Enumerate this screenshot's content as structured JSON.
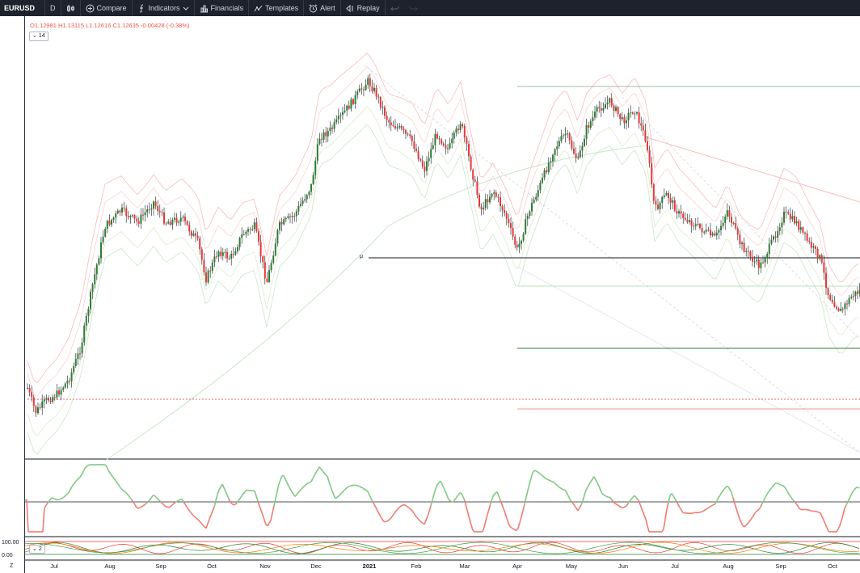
{
  "toolbar": {
    "symbol": "EURUSD",
    "interval": "D",
    "compare_label": "Compare",
    "indicators_label": "Indicators",
    "financials_label": "Financials",
    "templates_label": "Templates",
    "alert_label": "Alert",
    "replay_label": "Replay"
  },
  "legend": {
    "ohlc": "O1.12981 H1.13115 L1.12616 C1.12635 -0.00428 (-0.38%)",
    "indicator_period": "14",
    "lower_indicator_count": "2"
  },
  "lower_pane": {
    "top_value": "100.00",
    "bottom_value": "0.00"
  },
  "annotation_mu": "μ",
  "z_label": "Z",
  "x_axis": {
    "labels": [
      "Jul",
      "Aug",
      "Sep",
      "Oct",
      "Nov",
      "Dec",
      "2021",
      "Feb",
      "Mar",
      "Apr",
      "May",
      "Jun",
      "Jul",
      "Aug",
      "Sep",
      "Oct"
    ]
  },
  "colors": {
    "up": "#2e7d32",
    "down": "#e53935",
    "toolbar_bg": "#1e222d"
  },
  "icons": [
    "compare-plus-icon",
    "indicators-fx-icon",
    "financials-icon",
    "templates-icon",
    "alert-clock-icon",
    "replay-icon",
    "undo-icon",
    "redo-icon"
  ]
}
